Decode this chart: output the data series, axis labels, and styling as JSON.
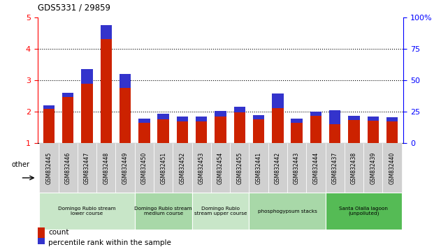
{
  "title": "GDS5331 / 29859",
  "samples": [
    "GSM832445",
    "GSM832446",
    "GSM832447",
    "GSM832448",
    "GSM832449",
    "GSM832450",
    "GSM832451",
    "GSM832452",
    "GSM832453",
    "GSM832454",
    "GSM832455",
    "GSM832441",
    "GSM832442",
    "GSM832443",
    "GSM832444",
    "GSM832437",
    "GSM832438",
    "GSM832439",
    "GSM832440"
  ],
  "count_values": [
    2.2,
    2.6,
    3.35,
    4.75,
    3.2,
    1.78,
    1.93,
    1.85,
    1.85,
    2.02,
    2.15,
    1.9,
    2.57,
    1.78,
    2.0,
    2.05,
    1.87,
    1.85,
    1.82
  ],
  "percentile_values": [
    0.1,
    0.13,
    0.45,
    0.45,
    0.45,
    0.13,
    0.16,
    0.16,
    0.16,
    0.16,
    0.16,
    0.13,
    0.45,
    0.13,
    0.13,
    0.45,
    0.13,
    0.13,
    0.13
  ],
  "bar_color": "#cc2200",
  "blue_color": "#3333cc",
  "ylim_left": [
    1,
    5
  ],
  "ylim_right": [
    0,
    100
  ],
  "yticks_left": [
    1,
    2,
    3,
    4,
    5
  ],
  "yticks_right": [
    0,
    25,
    50,
    75,
    100
  ],
  "groups": [
    {
      "label": "Domingo Rubio stream\nlower course",
      "start": 0,
      "end": 4,
      "color": "#c8e6c8"
    },
    {
      "label": "Domingo Rubio stream\nmedium course",
      "start": 5,
      "end": 7,
      "color": "#a8d8a8"
    },
    {
      "label": "Domingo Rubio\nstream upper course",
      "start": 8,
      "end": 10,
      "color": "#c8e6c8"
    },
    {
      "label": "phosphogypsum stacks",
      "start": 11,
      "end": 14,
      "color": "#a8d8a8"
    },
    {
      "label": "Santa Olalla lagoon\n(unpolluted)",
      "start": 15,
      "end": 18,
      "color": "#55bb55"
    }
  ],
  "other_label": "other",
  "legend_count": "count",
  "legend_percentile": "percentile rank within the sample",
  "bar_width": 0.6
}
